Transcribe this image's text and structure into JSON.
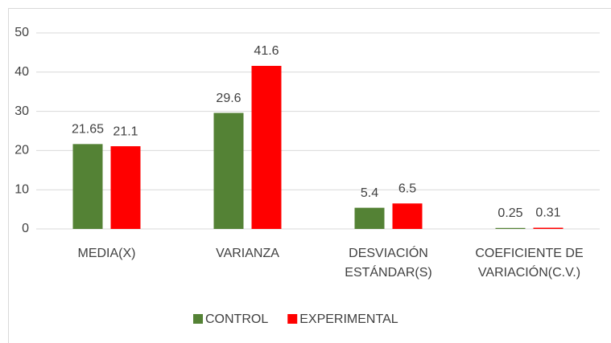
{
  "chart_data": {
    "type": "bar",
    "categories": [
      "MEDIA(X)",
      "VARIANZA",
      "DESVIACIÓN ESTÁNDAR(S)",
      "COEFICIENTE DE VARIACIÓN(C.V.)"
    ],
    "series": [
      {
        "name": "CONTROL",
        "color": "#548235",
        "values": [
          21.65,
          29.6,
          5.4,
          0.25
        ]
      },
      {
        "name": "EXPERIMENTAL",
        "color": "#ff0000",
        "values": [
          21.1,
          41.6,
          6.5,
          0.31
        ]
      }
    ],
    "ylim": [
      0,
      50
    ],
    "yticks": [
      0,
      10,
      20,
      30,
      40,
      50
    ],
    "grid": true,
    "legend": "bottom"
  }
}
